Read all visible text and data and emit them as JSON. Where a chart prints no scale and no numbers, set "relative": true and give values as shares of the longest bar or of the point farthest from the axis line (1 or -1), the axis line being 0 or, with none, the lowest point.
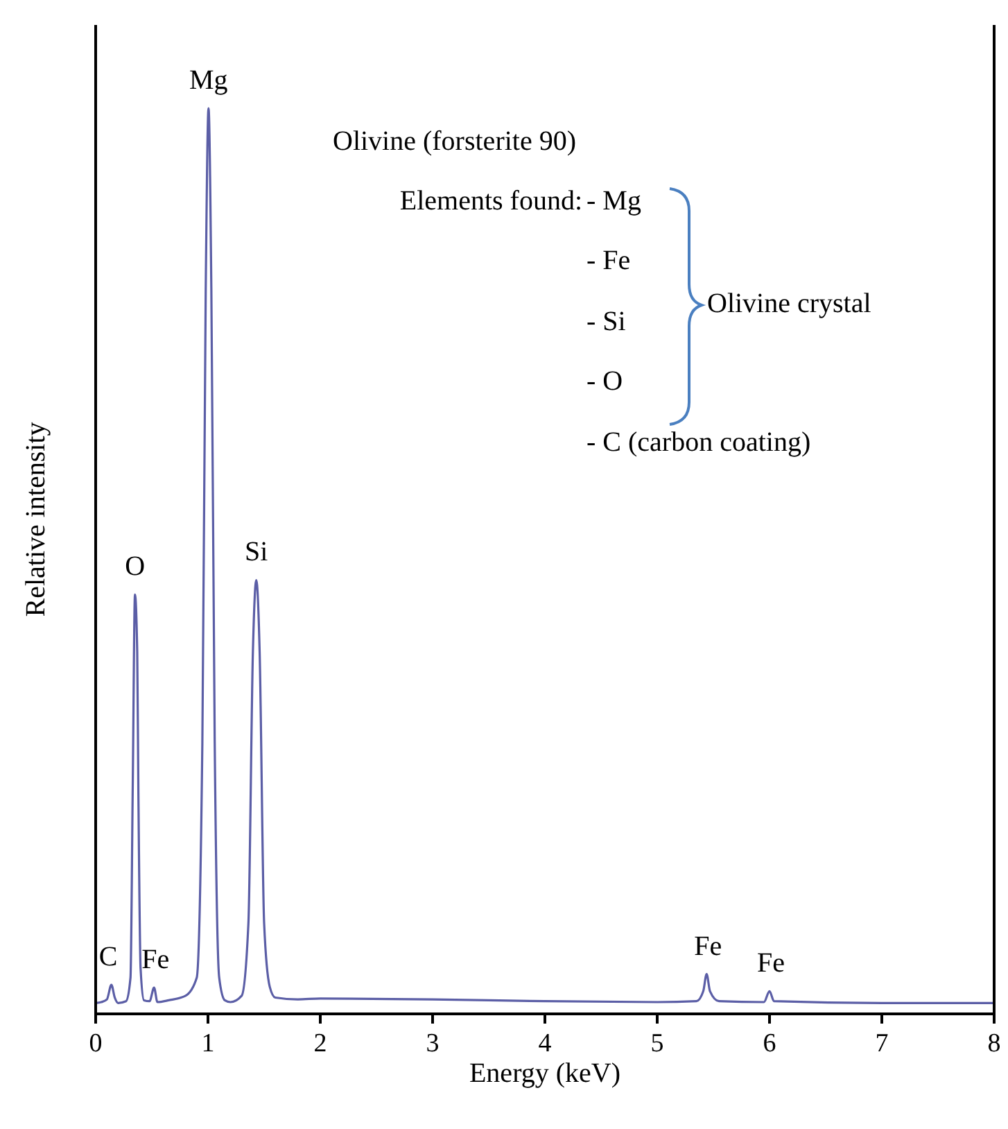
{
  "chart_data": {
    "type": "line",
    "relative": true,
    "xlabel": "Energy (keV)",
    "ylabel": "Relative intensity",
    "xlim": [
      0,
      8
    ],
    "xticks": [
      0,
      1,
      2,
      3,
      4,
      5,
      6,
      7,
      8
    ],
    "grid": false,
    "marker": "none",
    "line_style": "solid",
    "series": [
      {
        "color": "#5b5ea6",
        "x": [
          0,
          0.05,
          0.1,
          0.14,
          0.17,
          0.2,
          0.27,
          0.31,
          0.33,
          0.35,
          0.37,
          0.38,
          0.4,
          0.43,
          0.48,
          0.52,
          0.55,
          0.65,
          0.8,
          0.9,
          0.95,
          0.98,
          1.005,
          1.03,
          1.06,
          1.1,
          1.15,
          1.2,
          1.3,
          1.36,
          1.4,
          1.43,
          1.46,
          1.5,
          1.55,
          1.6,
          1.8,
          2,
          3,
          4,
          5,
          5.35,
          5.41,
          5.44,
          5.47,
          5.55,
          5.95,
          6,
          6.04,
          7,
          8
        ],
        "values": [
          0.012,
          0.013,
          0.016,
          0.032,
          0.018,
          0.012,
          0.014,
          0.04,
          0.25,
          0.463,
          0.4,
          0.25,
          0.05,
          0.015,
          0.014,
          0.029,
          0.013,
          0.015,
          0.02,
          0.04,
          0.3,
          0.8,
          1,
          0.8,
          0.3,
          0.04,
          0.015,
          0.013,
          0.02,
          0.1,
          0.4,
          0.479,
          0.4,
          0.1,
          0.03,
          0.018,
          0.016,
          0.017,
          0.016,
          0.014,
          0.013,
          0.014,
          0.025,
          0.044,
          0.025,
          0.014,
          0.013,
          0.025,
          0.014,
          0.012,
          0.012
        ]
      }
    ],
    "annotations": [
      {
        "text": "Mg",
        "x": 1.005,
        "y": 1
      },
      {
        "text": "O",
        "x": 0.35,
        "y": 0.463
      },
      {
        "text": "Si",
        "x": 1.43,
        "y": 0.479
      },
      {
        "text": "C",
        "x": 0.14,
        "y": 0.032
      },
      {
        "text": "Fe",
        "x": 0.52,
        "y": 0.029
      },
      {
        "text": "Fe",
        "x": 5.44,
        "y": 0.044
      },
      {
        "text": "Fe",
        "x": 6,
        "y": 0.025
      },
      "Olivine (forsterite 90)",
      "Elements found:",
      "- Mg",
      "- Fe",
      "- Si",
      "- O",
      "- C (carbon coating)",
      "Olivine crystal"
    ]
  }
}
